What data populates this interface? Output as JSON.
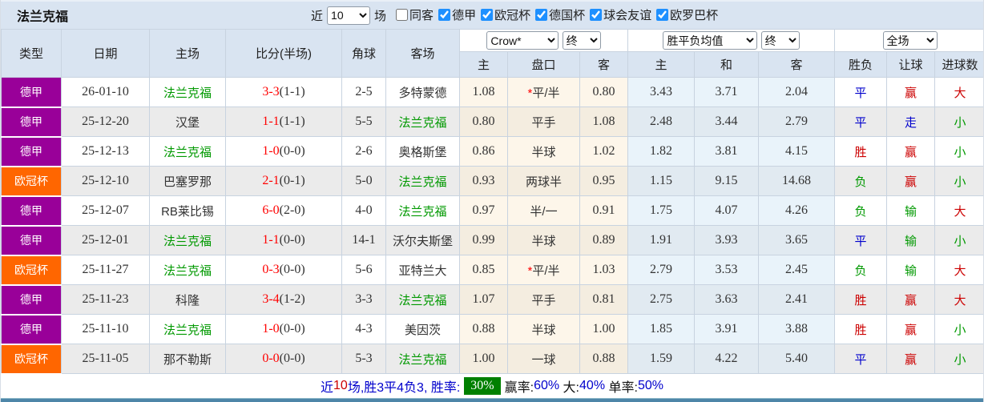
{
  "header": {
    "title": "法兰克福",
    "recent_label": "近",
    "matches_count": "10",
    "matches_label": "场",
    "filters": [
      {
        "label": "同客",
        "checked": false
      },
      {
        "label": "德甲",
        "checked": true
      },
      {
        "label": "欧冠杯",
        "checked": true
      },
      {
        "label": "德国杯",
        "checked": true
      },
      {
        "label": "球会友谊",
        "checked": true
      },
      {
        "label": "欧罗巴杯",
        "checked": true
      }
    ]
  },
  "controls": {
    "odds_company": "Crow*",
    "odds_time": "终",
    "mean_type": "胜平负均值",
    "mean_time": "终",
    "scope": "全场"
  },
  "columns": {
    "type": "类型",
    "date": "日期",
    "home": "主场",
    "score": "比分(半场)",
    "corner": "角球",
    "away": "客场",
    "odds_home": "主",
    "odds_handicap": "盘口",
    "odds_away": "客",
    "mean_home": "主",
    "mean_draw": "和",
    "mean_away": "客",
    "result": "胜负",
    "handicap_result": "让球",
    "goals": "进球数"
  },
  "rows": [
    {
      "league": "德甲",
      "date": "26-01-10",
      "home": {
        "name": "法兰克福",
        "self": true
      },
      "score": {
        "main": "3-3",
        "half": "(1-1)"
      },
      "corner": "2-5",
      "away": {
        "name": "多特蒙德",
        "self": false
      },
      "odds": {
        "home": "1.08",
        "star": true,
        "handicap": "平/半",
        "away": "0.80"
      },
      "mean": {
        "home": "3.43",
        "draw": "3.71",
        "away": "2.04"
      },
      "result": {
        "text": "平",
        "color": "blue"
      },
      "handicap_result": {
        "text": "赢",
        "color": "red"
      },
      "goals": {
        "text": "大",
        "color": "red"
      }
    },
    {
      "league": "德甲",
      "date": "25-12-20",
      "home": {
        "name": "汉堡",
        "self": false
      },
      "score": {
        "main": "1-1",
        "half": "(1-1)"
      },
      "corner": "5-5",
      "away": {
        "name": "法兰克福",
        "self": true
      },
      "odds": {
        "home": "0.80",
        "star": false,
        "handicap": "平手",
        "away": "1.08"
      },
      "mean": {
        "home": "2.48",
        "draw": "3.44",
        "away": "2.79"
      },
      "result": {
        "text": "平",
        "color": "blue"
      },
      "handicap_result": {
        "text": "走",
        "color": "blue"
      },
      "goals": {
        "text": "小",
        "color": "green"
      }
    },
    {
      "league": "德甲",
      "date": "25-12-13",
      "home": {
        "name": "法兰克福",
        "self": true
      },
      "score": {
        "main": "1-0",
        "half": "(0-0)"
      },
      "corner": "2-6",
      "away": {
        "name": "奥格斯堡",
        "self": false
      },
      "odds": {
        "home": "0.86",
        "star": false,
        "handicap": "半球",
        "away": "1.02"
      },
      "mean": {
        "home": "1.82",
        "draw": "3.81",
        "away": "4.15"
      },
      "result": {
        "text": "胜",
        "color": "red"
      },
      "handicap_result": {
        "text": "赢",
        "color": "red"
      },
      "goals": {
        "text": "小",
        "color": "green"
      }
    },
    {
      "league": "欧冠杯",
      "date": "25-12-10",
      "home": {
        "name": "巴塞罗那",
        "self": false
      },
      "score": {
        "main": "2-1",
        "half": "(0-1)"
      },
      "corner": "5-0",
      "away": {
        "name": "法兰克福",
        "self": true
      },
      "odds": {
        "home": "0.93",
        "star": false,
        "handicap": "两球半",
        "away": "0.95"
      },
      "mean": {
        "home": "1.15",
        "draw": "9.15",
        "away": "14.68"
      },
      "result": {
        "text": "负",
        "color": "green"
      },
      "handicap_result": {
        "text": "赢",
        "color": "red"
      },
      "goals": {
        "text": "小",
        "color": "green"
      }
    },
    {
      "league": "德甲",
      "date": "25-12-07",
      "home": {
        "name": "RB莱比锡",
        "self": false
      },
      "score": {
        "main": "6-0",
        "half": "(2-0)"
      },
      "corner": "4-0",
      "away": {
        "name": "法兰克福",
        "self": true
      },
      "odds": {
        "home": "0.97",
        "star": false,
        "handicap": "半/一",
        "away": "0.91"
      },
      "mean": {
        "home": "1.75",
        "draw": "4.07",
        "away": "4.26"
      },
      "result": {
        "text": "负",
        "color": "green"
      },
      "handicap_result": {
        "text": "输",
        "color": "green"
      },
      "goals": {
        "text": "大",
        "color": "red"
      }
    },
    {
      "league": "德甲",
      "date": "25-12-01",
      "home": {
        "name": "法兰克福",
        "self": true
      },
      "score": {
        "main": "1-1",
        "half": "(0-0)"
      },
      "corner": "14-1",
      "away": {
        "name": "沃尔夫斯堡",
        "self": false
      },
      "odds": {
        "home": "0.99",
        "star": false,
        "handicap": "半球",
        "away": "0.89"
      },
      "mean": {
        "home": "1.91",
        "draw": "3.93",
        "away": "3.65"
      },
      "result": {
        "text": "平",
        "color": "blue"
      },
      "handicap_result": {
        "text": "输",
        "color": "green"
      },
      "goals": {
        "text": "小",
        "color": "green"
      }
    },
    {
      "league": "欧冠杯",
      "date": "25-11-27",
      "home": {
        "name": "法兰克福",
        "self": true
      },
      "score": {
        "main": "0-3",
        "half": "(0-0)"
      },
      "corner": "5-6",
      "away": {
        "name": "亚特兰大",
        "self": false
      },
      "odds": {
        "home": "0.85",
        "star": true,
        "handicap": "平/半",
        "away": "1.03"
      },
      "mean": {
        "home": "2.79",
        "draw": "3.53",
        "away": "2.45"
      },
      "result": {
        "text": "负",
        "color": "green"
      },
      "handicap_result": {
        "text": "输",
        "color": "green"
      },
      "goals": {
        "text": "大",
        "color": "red"
      }
    },
    {
      "league": "德甲",
      "date": "25-11-23",
      "home": {
        "name": "科隆",
        "self": false
      },
      "score": {
        "main": "3-4",
        "half": "(1-2)"
      },
      "corner": "3-3",
      "away": {
        "name": "法兰克福",
        "self": true
      },
      "odds": {
        "home": "1.07",
        "star": false,
        "handicap": "平手",
        "away": "0.81"
      },
      "mean": {
        "home": "2.75",
        "draw": "3.63",
        "away": "2.41"
      },
      "result": {
        "text": "胜",
        "color": "red"
      },
      "handicap_result": {
        "text": "赢",
        "color": "red"
      },
      "goals": {
        "text": "大",
        "color": "red"
      }
    },
    {
      "league": "德甲",
      "date": "25-11-10",
      "home": {
        "name": "法兰克福",
        "self": true
      },
      "score": {
        "main": "1-0",
        "half": "(0-0)"
      },
      "corner": "4-3",
      "away": {
        "name": "美因茨",
        "self": false
      },
      "odds": {
        "home": "0.88",
        "star": false,
        "handicap": "半球",
        "away": "1.00"
      },
      "mean": {
        "home": "1.85",
        "draw": "3.91",
        "away": "3.88"
      },
      "result": {
        "text": "胜",
        "color": "red"
      },
      "handicap_result": {
        "text": "赢",
        "color": "red"
      },
      "goals": {
        "text": "小",
        "color": "green"
      }
    },
    {
      "league": "欧冠杯",
      "date": "25-11-05",
      "home": {
        "name": "那不勒斯",
        "self": false
      },
      "score": {
        "main": "0-0",
        "half": "(0-0)"
      },
      "corner": "5-3",
      "away": {
        "name": "法兰克福",
        "self": true
      },
      "odds": {
        "home": "1.00",
        "star": false,
        "handicap": "一球",
        "away": "0.88"
      },
      "mean": {
        "home": "1.59",
        "draw": "4.22",
        "away": "5.40"
      },
      "result": {
        "text": "平",
        "color": "blue"
      },
      "handicap_result": {
        "text": "赢",
        "color": "red"
      },
      "goals": {
        "text": "小",
        "color": "green"
      }
    }
  ],
  "footer": {
    "segments": [
      {
        "text": "近",
        "color": "blue"
      },
      {
        "text": "10",
        "color": "red"
      },
      {
        "text": "场,胜3平4负3, 胜率:",
        "color": "blue"
      },
      {
        "text": "30%",
        "badge": true
      },
      {
        "text": "赢率:",
        "color": "black"
      },
      {
        "text": "60%",
        "color": "blue"
      },
      {
        "text": " 大:",
        "color": "black"
      },
      {
        "text": "40%",
        "color": "blue"
      },
      {
        "text": " 单率:",
        "color": "black"
      },
      {
        "text": "50%",
        "color": "blue"
      }
    ]
  },
  "colors": {
    "header_bg": "#d9e4f1",
    "checkbox_accent": "#1e90ff",
    "league": {
      "德甲": "#990099",
      "欧冠杯": "#ff6600"
    },
    "team_self": "#009900",
    "score_red": "#ff0000",
    "red": "#cc0000",
    "green": "#009900",
    "blue": "#0000cc",
    "odds_bg": "#fdf6ea",
    "mean_bg": "#e9f3fa",
    "badge_bg": "#008000",
    "bottom_line": "#4e86a8"
  }
}
